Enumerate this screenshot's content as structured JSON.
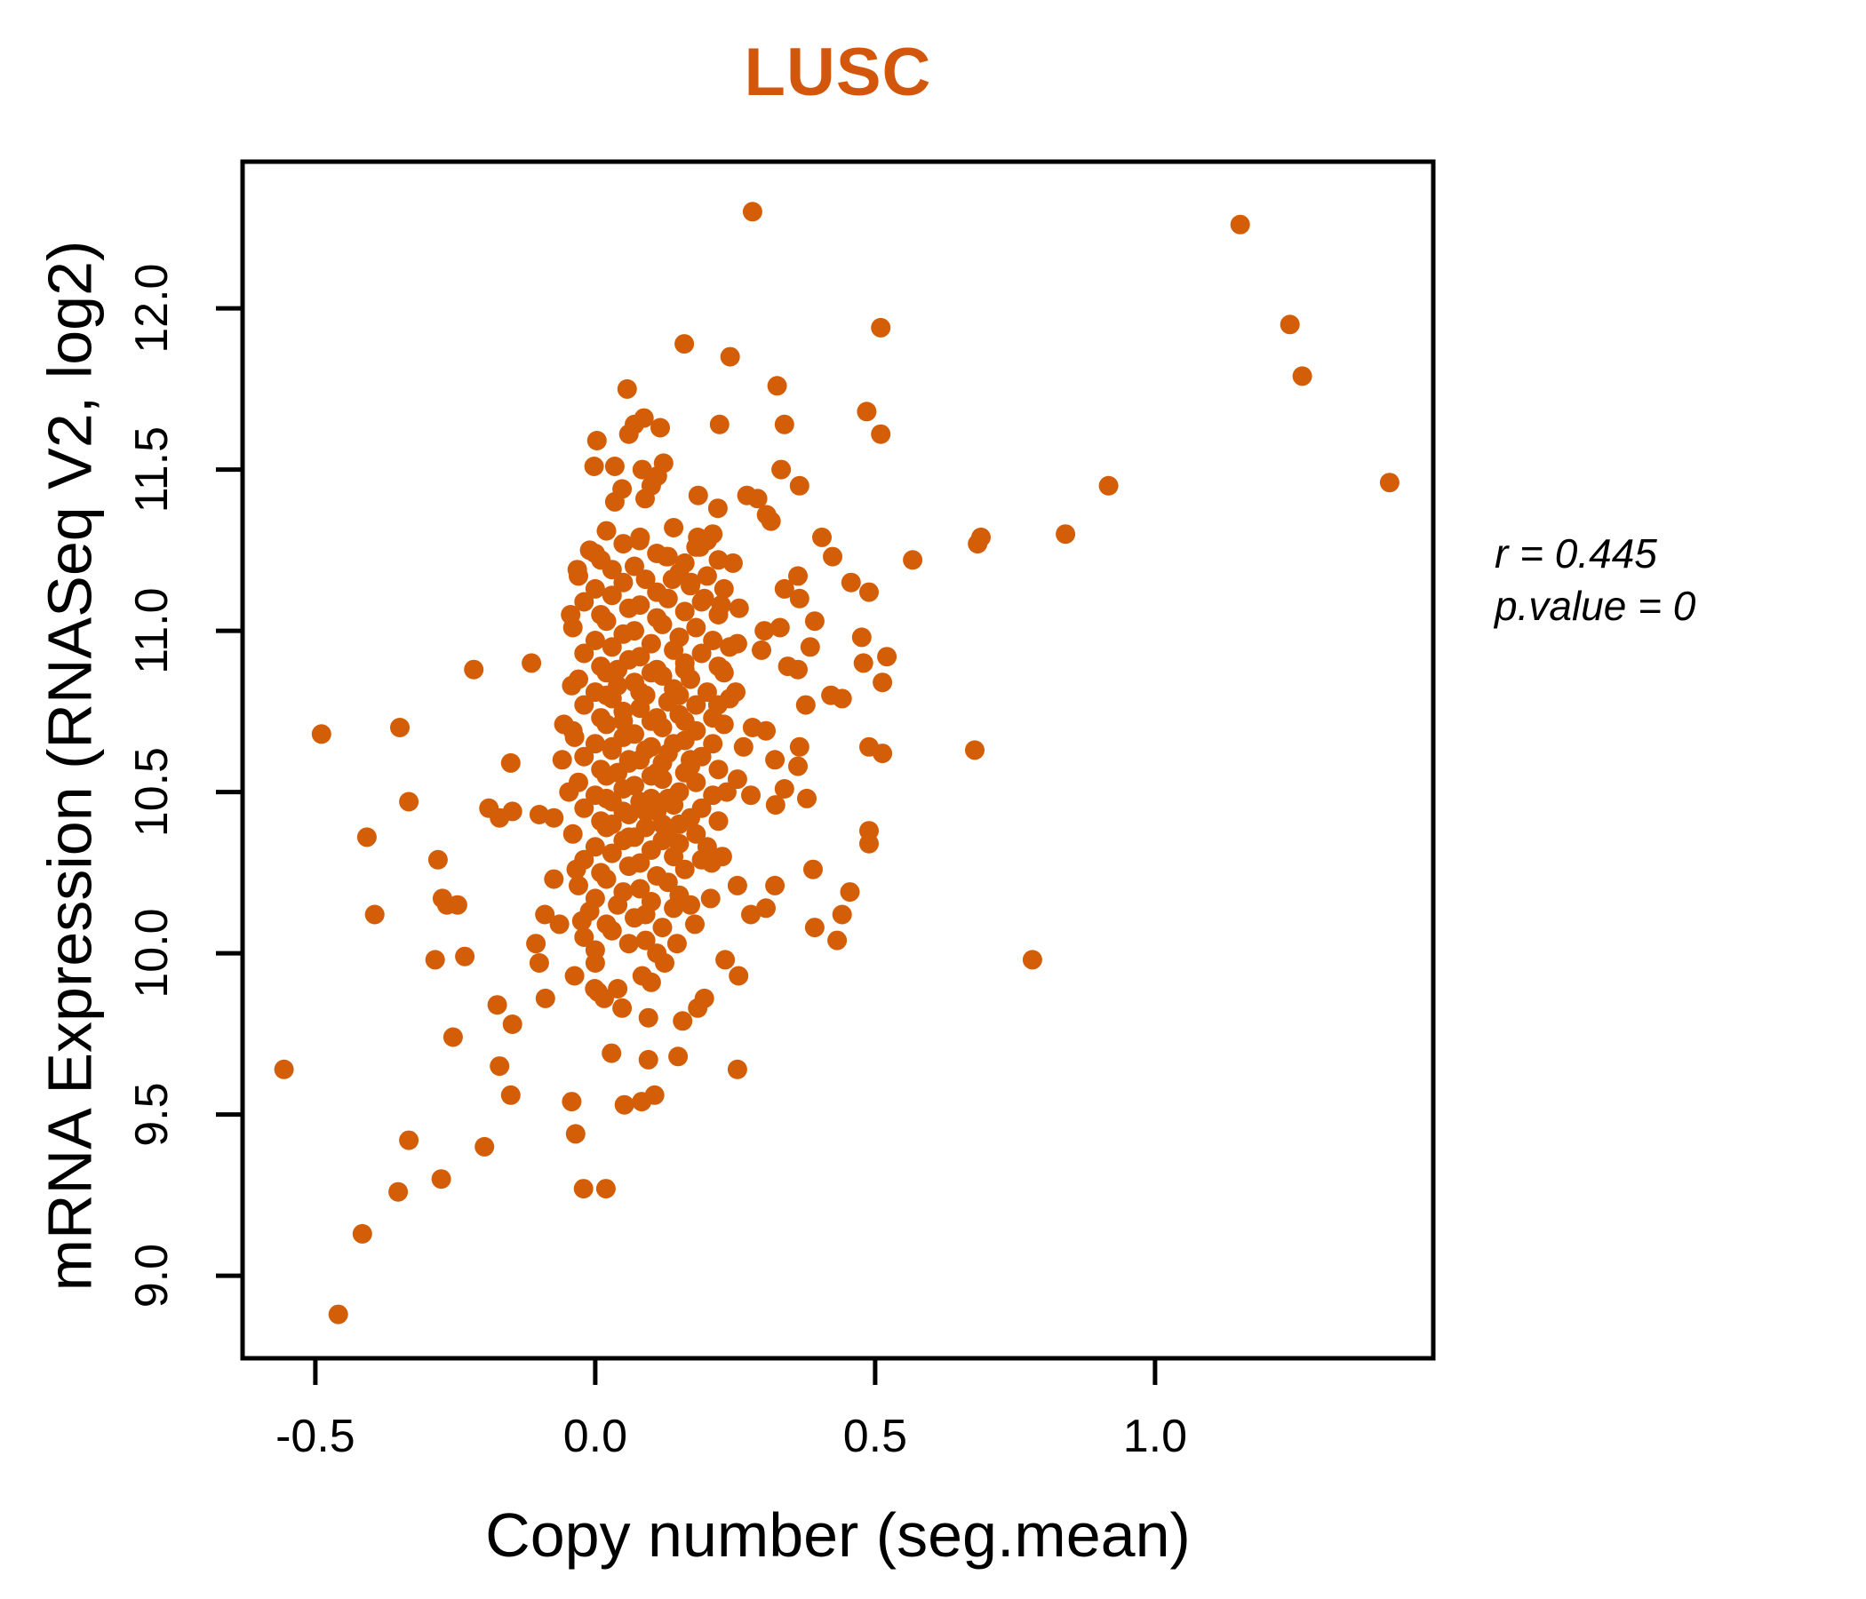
{
  "title": "LUSC",
  "title_color": "#D2570D",
  "annotation": {
    "r_line": "r = 0.445",
    "p_line": "p.value = 0"
  },
  "chart_data": {
    "type": "scatter",
    "title": "LUSC",
    "xlabel": "Copy number (seg.mean)",
    "ylabel": "mRNA Expression (RNASeq V2, log2)",
    "x_ticks": [
      -0.5,
      0.0,
      0.5,
      1.0
    ],
    "y_ticks": [
      9.0,
      9.5,
      10.0,
      10.5,
      11.0,
      11.5,
      12.0
    ],
    "xlim": [
      -0.63,
      1.497
    ],
    "ylim": [
      8.744,
      12.455
    ],
    "grid": false,
    "legend": "none",
    "point_color": "#D45E08",
    "axis_color": "#000000",
    "stats": {
      "r": 0.445,
      "p_value": 0
    },
    "points": [
      [
        0.057,
        11.75
      ],
      [
        0.07,
        11.64
      ],
      [
        0.06,
        11.61
      ],
      [
        0.087,
        11.66
      ],
      [
        0.003,
        11.59
      ],
      [
        -0.002,
        11.51
      ],
      [
        0.035,
        11.51
      ],
      [
        0.084,
        11.5
      ],
      [
        0.048,
        11.44
      ],
      [
        0.035,
        11.4
      ],
      [
        0.089,
        11.41
      ],
      [
        0.079,
        11.28
      ],
      [
        0.281,
        12.3
      ],
      [
        0.51,
        11.94
      ],
      [
        0.159,
        11.89
      ],
      [
        0.241,
        11.85
      ],
      [
        0.325,
        11.76
      ],
      [
        0.485,
        11.68
      ],
      [
        0.222,
        11.64
      ],
      [
        0.338,
        11.64
      ],
      [
        0.51,
        11.61
      ],
      [
        0.116,
        11.63
      ],
      [
        0.122,
        11.52
      ],
      [
        0.111,
        11.48
      ],
      [
        0.1,
        11.45
      ],
      [
        0.184,
        11.42
      ],
      [
        0.219,
        11.38
      ],
      [
        0.332,
        11.5
      ],
      [
        0.365,
        11.45
      ],
      [
        0.271,
        11.42
      ],
      [
        0.29,
        11.41
      ],
      [
        0.306,
        11.36
      ],
      [
        0.314,
        11.34
      ],
      [
        0.183,
        11.29
      ],
      [
        0.2,
        11.28
      ],
      [
        0.405,
        11.29
      ],
      [
        0.689,
        11.29
      ],
      [
        0.84,
        11.3
      ],
      [
        1.152,
        12.26
      ],
      [
        1.241,
        11.95
      ],
      [
        1.263,
        11.79
      ],
      [
        0.917,
        11.45
      ],
      [
        1.419,
        11.46
      ],
      [
        -0.489,
        10.68
      ],
      [
        -0.349,
        10.7
      ],
      [
        -0.217,
        10.88
      ],
      [
        -0.114,
        10.9
      ],
      [
        -0.151,
        10.59
      ],
      [
        -0.333,
        10.47
      ],
      [
        -0.408,
        10.36
      ],
      [
        -0.281,
        10.29
      ],
      [
        -0.394,
        10.12
      ],
      [
        -0.265,
        10.15
      ],
      [
        -0.273,
        10.17
      ],
      [
        -0.246,
        10.15
      ],
      [
        -0.19,
        10.45
      ],
      [
        -0.148,
        10.44
      ],
      [
        -0.171,
        10.42
      ],
      [
        -0.1,
        10.43
      ],
      [
        -0.074,
        10.42
      ],
      [
        -0.044,
        11.05
      ],
      [
        -0.032,
        11.19
      ],
      [
        0.0,
        11.24
      ],
      [
        -0.042,
        10.83
      ],
      [
        -0.056,
        10.71
      ],
      [
        -0.037,
        10.67
      ],
      [
        -0.059,
        10.6
      ],
      [
        -0.047,
        10.5
      ],
      [
        -0.034,
        10.26
      ],
      [
        -0.074,
        10.23
      ],
      [
        -0.09,
        10.12
      ],
      [
        -0.064,
        10.09
      ],
      [
        -0.024,
        10.1
      ],
      [
        -0.106,
        10.03
      ],
      [
        -0.1,
        9.97
      ],
      [
        0.567,
        11.22
      ],
      [
        0.683,
        11.27
      ],
      [
        0.678,
        10.63
      ],
      [
        0.489,
        10.64
      ],
      [
        0.513,
        10.62
      ],
      [
        0.489,
        10.38
      ],
      [
        0.489,
        10.34
      ],
      [
        0.457,
        11.15
      ],
      [
        0.489,
        11.12
      ],
      [
        0.362,
        11.17
      ],
      [
        0.338,
        11.13
      ],
      [
        0.365,
        11.1
      ],
      [
        0.424,
        11.23
      ],
      [
        0.392,
        11.03
      ],
      [
        0.384,
        10.95
      ],
      [
        0.476,
        10.98
      ],
      [
        0.479,
        10.9
      ],
      [
        0.521,
        10.92
      ],
      [
        0.513,
        10.84
      ],
      [
        0.421,
        10.8
      ],
      [
        0.441,
        10.79
      ],
      [
        0.376,
        10.77
      ],
      [
        0.33,
        11.01
      ],
      [
        0.302,
        11.0
      ],
      [
        0.344,
        10.89
      ],
      [
        0.362,
        10.88
      ],
      [
        0.281,
        10.7
      ],
      [
        0.305,
        10.69
      ],
      [
        0.321,
        10.6
      ],
      [
        0.365,
        10.64
      ],
      [
        0.362,
        10.58
      ],
      [
        0.265,
        10.64
      ],
      [
        0.338,
        10.51
      ],
      [
        0.322,
        10.46
      ],
      [
        0.378,
        10.48
      ],
      [
        0.254,
        10.54
      ],
      [
        0.235,
        10.5
      ],
      [
        0.278,
        10.49
      ],
      [
        0.297,
        10.94
      ],
      [
        0.254,
        10.96
      ],
      [
        0.227,
        10.88
      ],
      [
        0.251,
        10.81
      ],
      [
        0.219,
        10.77
      ],
      [
        0.195,
        11.1
      ],
      [
        0.225,
        11.08
      ],
      [
        0.257,
        11.07
      ],
      [
        0.246,
        11.21
      ],
      [
        0.187,
        11.26
      ],
      [
        0.127,
        11.23
      ],
      [
        0.171,
        11.15
      ],
      [
        0.138,
        11.16
      ],
      [
        0.389,
        10.26
      ],
      [
        0.455,
        10.19
      ],
      [
        0.441,
        10.12
      ],
      [
        0.392,
        10.08
      ],
      [
        0.432,
        10.04
      ],
      [
        0.321,
        10.21
      ],
      [
        0.278,
        10.12
      ],
      [
        0.305,
        10.14
      ],
      [
        0.254,
        10.21
      ],
      [
        0.208,
        10.28
      ],
      [
        0.227,
        10.3
      ],
      [
        0.206,
        10.17
      ],
      [
        0.17,
        10.15
      ],
      [
        0.178,
        10.09
      ],
      [
        0.146,
        10.03
      ],
      [
        -0.556,
        9.64
      ],
      [
        -0.254,
        9.74
      ],
      [
        -0.175,
        9.84
      ],
      [
        -0.148,
        9.78
      ],
      [
        -0.089,
        9.86
      ],
      [
        -0.037,
        9.93
      ],
      [
        0.0,
        9.97
      ],
      [
        0.005,
        9.88
      ],
      [
        -0.001,
        9.89
      ],
      [
        0.016,
        9.86
      ],
      [
        0.04,
        9.89
      ],
      [
        0.048,
        9.83
      ],
      [
        0.084,
        9.93
      ],
      [
        -0.171,
        9.65
      ],
      [
        -0.151,
        9.56
      ],
      [
        -0.042,
        9.54
      ],
      [
        0.029,
        9.69
      ],
      [
        0.052,
        9.53
      ],
      [
        0.083,
        9.54
      ],
      [
        -0.035,
        9.44
      ],
      [
        -0.333,
        9.42
      ],
      [
        -0.198,
        9.4
      ],
      [
        -0.352,
        9.26
      ],
      [
        -0.275,
        9.3
      ],
      [
        -0.021,
        9.27
      ],
      [
        0.019,
        9.27
      ],
      [
        -0.416,
        9.13
      ],
      [
        -0.459,
        8.88
      ],
      [
        -0.286,
        9.98
      ],
      [
        -0.233,
        9.99
      ],
      [
        0.124,
        9.97
      ],
      [
        0.1,
        9.91
      ],
      [
        0.232,
        9.98
      ],
      [
        0.256,
        9.93
      ],
      [
        0.195,
        9.86
      ],
      [
        0.183,
        9.83
      ],
      [
        0.156,
        9.79
      ],
      [
        0.095,
        9.8
      ],
      [
        0.148,
        9.68
      ],
      [
        0.095,
        9.67
      ],
      [
        0.254,
        9.64
      ],
      [
        0.106,
        9.56
      ],
      [
        0.781,
        9.98
      ],
      [
        0.02,
        11.31
      ],
      [
        0.08,
        11.29
      ],
      [
        0.14,
        11.32
      ],
      [
        0.21,
        11.3
      ],
      [
        -0.01,
        11.25
      ],
      [
        0.05,
        11.27
      ],
      [
        0.11,
        11.24
      ],
      [
        0.18,
        11.26
      ],
      [
        0.01,
        11.22
      ],
      [
        0.07,
        11.2
      ],
      [
        0.13,
        11.23
      ],
      [
        0.16,
        11.21
      ],
      [
        0.22,
        11.22
      ],
      [
        -0.03,
        11.17
      ],
      [
        0.03,
        11.19
      ],
      [
        0.09,
        11.16
      ],
      [
        0.15,
        11.18
      ],
      [
        0.2,
        11.17
      ],
      [
        0.0,
        11.13
      ],
      [
        0.05,
        11.15
      ],
      [
        0.11,
        11.12
      ],
      [
        0.17,
        11.14
      ],
      [
        0.23,
        11.13
      ],
      [
        -0.02,
        11.09
      ],
      [
        0.03,
        11.11
      ],
      [
        0.08,
        11.08
      ],
      [
        0.13,
        11.1
      ],
      [
        0.19,
        11.09
      ],
      [
        0.01,
        11.05
      ],
      [
        0.06,
        11.07
      ],
      [
        0.11,
        11.04
      ],
      [
        0.16,
        11.06
      ],
      [
        0.22,
        11.05
      ],
      [
        -0.04,
        11.01
      ],
      [
        0.02,
        11.03
      ],
      [
        0.07,
        11.0
      ],
      [
        0.12,
        11.02
      ],
      [
        0.18,
        11.01
      ],
      [
        0.0,
        10.97
      ],
      [
        0.05,
        10.99
      ],
      [
        0.1,
        10.96
      ],
      [
        0.15,
        10.98
      ],
      [
        0.21,
        10.97
      ],
      [
        -0.02,
        10.93
      ],
      [
        0.03,
        10.95
      ],
      [
        0.08,
        10.92
      ],
      [
        0.14,
        10.94
      ],
      [
        0.19,
        10.93
      ],
      [
        0.24,
        10.95
      ],
      [
        0.01,
        10.89
      ],
      [
        0.06,
        10.91
      ],
      [
        0.11,
        10.88
      ],
      [
        0.16,
        10.9
      ],
      [
        0.22,
        10.89
      ],
      [
        -0.03,
        10.85
      ],
      [
        0.02,
        10.87
      ],
      [
        0.07,
        10.84
      ],
      [
        0.12,
        10.86
      ],
      [
        0.17,
        10.85
      ],
      [
        0.23,
        10.87
      ],
      [
        0.0,
        10.81
      ],
      [
        0.04,
        10.83
      ],
      [
        0.09,
        10.8
      ],
      [
        0.14,
        10.82
      ],
      [
        0.2,
        10.81
      ],
      [
        -0.02,
        10.77
      ],
      [
        0.03,
        10.79
      ],
      [
        0.08,
        10.76
      ],
      [
        0.13,
        10.78
      ],
      [
        0.18,
        10.77
      ],
      [
        0.24,
        10.79
      ],
      [
        0.01,
        10.73
      ],
      [
        0.05,
        10.75
      ],
      [
        0.1,
        10.72
      ],
      [
        0.15,
        10.74
      ],
      [
        0.21,
        10.73
      ],
      [
        -0.04,
        10.69
      ],
      [
        0.02,
        10.71
      ],
      [
        0.07,
        10.68
      ],
      [
        0.12,
        10.7
      ],
      [
        0.18,
        10.69
      ],
      [
        0.23,
        10.71
      ],
      [
        0.0,
        10.65
      ],
      [
        0.05,
        10.67
      ],
      [
        0.1,
        10.64
      ],
      [
        0.16,
        10.66
      ],
      [
        0.21,
        10.65
      ],
      [
        -0.02,
        10.61
      ],
      [
        0.03,
        10.63
      ],
      [
        0.08,
        10.6
      ],
      [
        0.13,
        10.62
      ],
      [
        0.19,
        10.61
      ],
      [
        0.01,
        10.57
      ],
      [
        0.06,
        10.59
      ],
      [
        0.11,
        10.56
      ],
      [
        0.17,
        10.58
      ],
      [
        0.22,
        10.57
      ],
      [
        -0.03,
        10.53
      ],
      [
        0.02,
        10.55
      ],
      [
        0.07,
        10.52
      ],
      [
        0.12,
        10.54
      ],
      [
        0.18,
        10.53
      ],
      [
        0.0,
        10.49
      ],
      [
        0.05,
        10.51
      ],
      [
        0.1,
        10.48
      ],
      [
        0.15,
        10.5
      ],
      [
        0.21,
        10.49
      ],
      [
        -0.02,
        10.45
      ],
      [
        0.03,
        10.47
      ],
      [
        0.09,
        10.44
      ],
      [
        0.14,
        10.46
      ],
      [
        0.19,
        10.45
      ],
      [
        0.01,
        10.41
      ],
      [
        0.06,
        10.43
      ],
      [
        0.12,
        10.4
      ],
      [
        0.17,
        10.42
      ],
      [
        0.22,
        10.41
      ],
      [
        -0.04,
        10.37
      ],
      [
        0.02,
        10.39
      ],
      [
        0.07,
        10.36
      ],
      [
        0.13,
        10.38
      ],
      [
        0.18,
        10.37
      ],
      [
        0.0,
        10.33
      ],
      [
        0.05,
        10.35
      ],
      [
        0.1,
        10.32
      ],
      [
        0.15,
        10.34
      ],
      [
        0.2,
        10.33
      ],
      [
        -0.02,
        10.29
      ],
      [
        0.03,
        10.31
      ],
      [
        0.08,
        10.28
      ],
      [
        0.14,
        10.3
      ],
      [
        0.19,
        10.29
      ],
      [
        0.01,
        10.25
      ],
      [
        0.06,
        10.27
      ],
      [
        0.11,
        10.24
      ],
      [
        0.16,
        10.26
      ],
      [
        -0.03,
        10.21
      ],
      [
        0.02,
        10.23
      ],
      [
        0.08,
        10.2
      ],
      [
        0.13,
        10.22
      ],
      [
        0.0,
        10.17
      ],
      [
        0.05,
        10.19
      ],
      [
        0.1,
        10.16
      ],
      [
        0.15,
        10.18
      ],
      [
        -0.01,
        10.13
      ],
      [
        0.04,
        10.15
      ],
      [
        0.09,
        10.12
      ],
      [
        0.14,
        10.14
      ],
      [
        0.02,
        10.09
      ],
      [
        0.07,
        10.11
      ],
      [
        0.12,
        10.08
      ],
      [
        -0.02,
        10.05
      ],
      [
        0.03,
        10.07
      ],
      [
        0.09,
        10.04
      ],
      [
        0.0,
        10.01
      ],
      [
        0.06,
        10.03
      ],
      [
        0.11,
        10.0
      ],
      [
        0.04,
        10.88
      ],
      [
        0.1,
        10.87
      ],
      [
        0.16,
        10.88
      ],
      [
        0.02,
        10.8
      ],
      [
        0.08,
        10.81
      ],
      [
        0.15,
        10.8
      ],
      [
        0.05,
        10.72
      ],
      [
        0.11,
        10.73
      ],
      [
        0.16,
        10.72
      ],
      [
        0.03,
        10.64
      ],
      [
        0.09,
        10.63
      ],
      [
        0.14,
        10.65
      ],
      [
        0.04,
        10.56
      ],
      [
        0.1,
        10.55
      ],
      [
        0.16,
        10.56
      ],
      [
        0.02,
        10.48
      ],
      [
        0.08,
        10.47
      ],
      [
        0.13,
        10.48
      ],
      [
        0.05,
        10.44
      ],
      [
        0.11,
        10.44
      ],
      [
        0.03,
        10.4
      ],
      [
        0.09,
        10.39
      ],
      [
        0.15,
        10.4
      ],
      [
        0.06,
        10.36
      ],
      [
        0.12,
        10.35
      ],
      [
        0.06,
        10.6
      ],
      [
        0.12,
        10.59
      ],
      [
        0.17,
        10.6
      ]
    ]
  }
}
